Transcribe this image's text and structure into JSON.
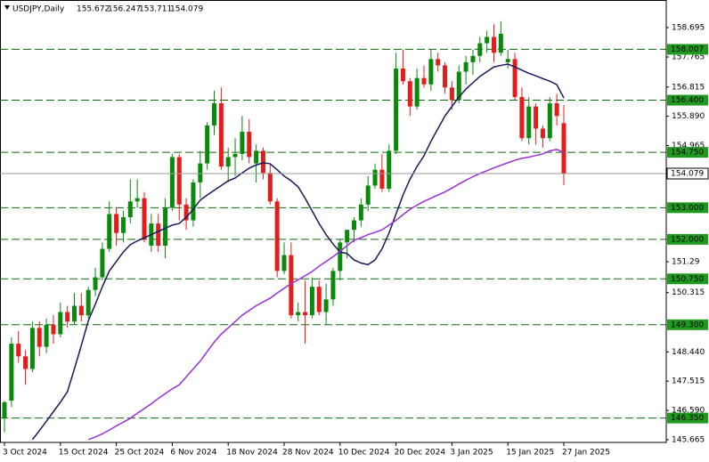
{
  "chart_data": {
    "type": "candlestick",
    "symbol": "USDJPY,Daily",
    "categories": [
      "3 Oct 2024",
      null,
      null,
      null,
      null,
      null,
      null,
      null,
      "15 Oct 2024",
      null,
      null,
      null,
      null,
      null,
      null,
      null,
      "25 Oct 2024",
      null,
      null,
      null,
      null,
      null,
      null,
      null,
      "6 Nov 2024",
      null,
      null,
      null,
      null,
      null,
      null,
      null,
      "18 Nov 2024",
      null,
      null,
      null,
      null,
      null,
      null,
      null,
      "28 Nov 2024",
      null,
      null,
      null,
      null,
      null,
      null,
      null,
      "10 Dec 2024",
      null,
      null,
      null,
      null,
      null,
      null,
      null,
      "20 Dec 2024",
      null,
      null,
      null,
      null,
      null,
      null,
      null,
      "3 Jan 2025",
      null,
      null,
      null,
      null,
      null,
      null,
      null,
      "15 Jan 2025",
      null,
      null,
      null,
      null,
      null,
      null,
      null,
      "27 Jan 2025"
    ],
    "open": [
      146.35,
      146.9,
      148.7,
      148.3,
      147.9,
      149.2,
      148.6,
      149.3,
      149.0,
      149.7,
      149.4,
      149.9,
      149.6,
      150.4,
      150.8,
      151.7,
      152.8,
      152.2,
      152.7,
      153.2,
      153.3,
      151.8,
      152.5,
      151.8,
      153.0,
      154.6,
      153.1,
      152.6,
      153.8,
      154.4,
      155.6,
      156.3,
      154.3,
      154.6,
      154.7,
      155.4,
      154.4,
      154.8,
      154.1,
      153.2,
      151.0,
      151.5,
      149.6,
      149.7,
      149.6,
      150.5,
      149.7,
      150.1,
      151.0,
      151.9,
      152.3,
      152.6,
      153.1,
      153.7,
      154.2,
      153.6,
      154.8,
      157.4,
      157.0,
      156.2,
      157.1,
      156.9,
      157.7,
      157.5,
      156.8,
      156.4,
      157.3,
      157.6,
      157.8,
      158.2,
      158.4,
      157.9,
      157.6,
      157.7,
      156.5,
      155.2,
      156.2,
      155.5,
      155.2,
      156.3,
      155.672
    ],
    "high": [
      146.9,
      148.9,
      149.1,
      148.5,
      149.4,
      149.4,
      149.5,
      149.6,
      150.0,
      149.9,
      150.3,
      150.3,
      150.5,
      151.1,
      151.9,
      153.2,
      153.0,
      152.9,
      153.9,
      153.9,
      153.5,
      152.8,
      152.8,
      153.3,
      154.7,
      154.7,
      153.3,
      153.9,
      154.8,
      155.7,
      156.7,
      156.8,
      154.9,
      155.2,
      155.9,
      155.8,
      155.0,
      154.9,
      154.4,
      153.3,
      151.9,
      151.9,
      150.0,
      150.7,
      150.8,
      150.7,
      150.6,
      151.1,
      152.0,
      152.3,
      152.7,
      153.3,
      154.0,
      154.4,
      154.7,
      155.0,
      157.9,
      158.0,
      157.1,
      157.4,
      157.5,
      158.0,
      157.9,
      157.6,
      157.0,
      157.5,
      157.8,
      158.0,
      158.4,
      158.6,
      158.8,
      158.9,
      158.0,
      157.9,
      156.8,
      156.5,
      156.3,
      155.6,
      156.5,
      156.6,
      156.247
    ],
    "low": [
      145.9,
      146.7,
      148.1,
      147.4,
      147.8,
      148.3,
      148.4,
      148.7,
      148.9,
      149.2,
      149.3,
      149.4,
      149.5,
      150.2,
      150.7,
      151.6,
      151.8,
      151.9,
      152.5,
      153.0,
      151.9,
      151.6,
      151.6,
      151.4,
      152.9,
      152.6,
      152.3,
      152.4,
      153.3,
      154.2,
      155.3,
      154.2,
      153.8,
      154.0,
      154.5,
      154.4,
      153.8,
      153.9,
      153.1,
      150.8,
      150.9,
      149.5,
      149.4,
      148.7,
      149.5,
      149.6,
      149.3,
      149.9,
      150.7,
      151.4,
      151.9,
      152.4,
      152.9,
      153.6,
      153.5,
      153.5,
      154.7,
      156.9,
      155.9,
      156.1,
      156.8,
      156.7,
      157.3,
      156.6,
      156.1,
      156.3,
      156.9,
      157.2,
      157.6,
      157.9,
      157.6,
      157.8,
      157.4,
      156.4,
      155.1,
      155.0,
      155.0,
      154.9,
      155.1,
      155.6,
      153.711
    ],
    "close": [
      146.85,
      148.7,
      148.3,
      147.9,
      149.2,
      148.6,
      149.3,
      149.0,
      149.7,
      149.4,
      149.9,
      149.6,
      150.4,
      150.8,
      151.7,
      152.8,
      152.2,
      152.7,
      153.2,
      153.3,
      152.0,
      152.5,
      151.8,
      153.0,
      154.6,
      153.1,
      152.6,
      153.8,
      154.4,
      155.6,
      156.3,
      154.3,
      154.6,
      154.7,
      155.4,
      154.6,
      154.8,
      154.1,
      153.2,
      151.0,
      151.5,
      149.6,
      149.7,
      149.6,
      150.5,
      149.7,
      150.1,
      151.0,
      151.9,
      152.3,
      152.6,
      153.1,
      153.7,
      154.2,
      153.6,
      154.8,
      157.4,
      157.0,
      156.2,
      157.1,
      156.9,
      157.7,
      157.5,
      156.8,
      156.4,
      157.3,
      157.6,
      157.8,
      158.2,
      158.4,
      157.9,
      158.5,
      157.7,
      156.5,
      155.2,
      156.2,
      155.5,
      155.2,
      156.3,
      155.9,
      154.079
    ],
    "up_color": "#0a8a0a",
    "down_color": "#e51c1c",
    "overlays": [
      {
        "color": "#1a1a5e",
        "values": [
          null,
          null,
          null,
          null,
          145.67,
          145.95,
          146.25,
          146.55,
          146.85,
          147.18,
          147.9,
          148.65,
          149.43,
          149.95,
          150.5,
          151.0,
          151.3,
          151.6,
          151.83,
          151.95,
          152.05,
          152.15,
          152.25,
          152.35,
          152.45,
          152.5,
          152.7,
          152.95,
          153.24,
          153.4,
          153.55,
          153.7,
          153.85,
          153.94,
          154.1,
          154.25,
          154.35,
          154.42,
          154.39,
          154.2,
          154.0,
          153.85,
          153.66,
          153.3,
          152.9,
          152.5,
          152.15,
          151.85,
          151.6,
          151.55,
          151.35,
          151.25,
          151.2,
          151.35,
          151.7,
          152.2,
          152.8,
          153.4,
          153.9,
          154.3,
          154.64,
          155.1,
          155.5,
          155.9,
          156.2,
          156.5,
          156.75,
          156.95,
          157.15,
          157.3,
          157.45,
          157.5,
          157.54,
          157.45,
          157.35,
          157.25,
          157.17,
          157.08,
          157.0,
          156.89,
          156.47
        ]
      },
      {
        "color": "#9b30d9",
        "values": [
          null,
          null,
          null,
          null,
          null,
          null,
          null,
          null,
          null,
          null,
          null,
          null,
          145.67,
          145.75,
          145.85,
          145.97,
          146.1,
          146.22,
          146.34,
          146.5,
          146.65,
          146.8,
          146.97,
          147.12,
          147.27,
          147.4,
          147.65,
          147.9,
          148.15,
          148.45,
          148.75,
          149.0,
          149.2,
          149.4,
          149.6,
          149.75,
          149.9,
          150.02,
          150.14,
          150.3,
          150.45,
          150.6,
          150.72,
          150.85,
          150.98,
          151.15,
          151.3,
          151.45,
          151.62,
          151.8,
          151.97,
          152.05,
          152.15,
          152.22,
          152.3,
          152.45,
          152.6,
          152.78,
          152.95,
          153.08,
          153.2,
          153.3,
          153.4,
          153.5,
          153.62,
          153.75,
          153.87,
          153.98,
          154.08,
          154.17,
          154.26,
          154.34,
          154.42,
          154.5,
          154.56,
          154.6,
          154.65,
          154.7,
          154.8,
          154.84,
          154.75
        ]
      }
    ],
    "ylim": [
      145.579,
      159.567
    ],
    "yticks": [
      158.695,
      157.765,
      156.815,
      {
        "value": 155.89,
        "label": "155.890"
      },
      154.965,
      151.29,
      150.315,
      {
        "value": 148.44,
        "label": "148.440"
      },
      147.515,
      {
        "value": 146.59,
        "label": "146.590"
      },
      145.665
    ],
    "levels": [
      {
        "value": 158.007,
        "label": "158.007"
      },
      {
        "value": 156.4,
        "label": "156.400"
      },
      {
        "value": 154.75,
        "label": "154.750"
      },
      {
        "value": 153,
        "label": "153.000"
      },
      {
        "value": 152,
        "label": "152.000"
      },
      {
        "value": 150.75,
        "label": "150.750"
      },
      {
        "value": 149.3,
        "label": "149.300"
      },
      {
        "value": 146.35,
        "label": "146.350"
      }
    ],
    "level_color": "#0b6b0b"
  }
}
